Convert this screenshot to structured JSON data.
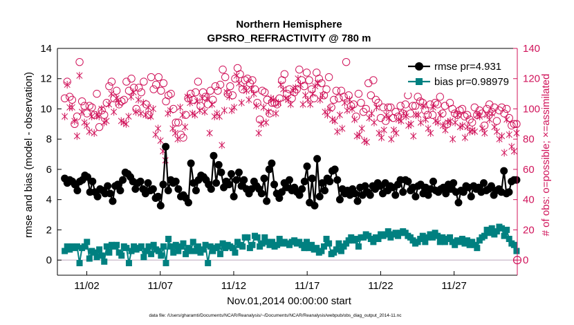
{
  "chart_data": {
    "type": "line",
    "title_line1": "Northern Hemisphere",
    "title_line2": "GPSRO_REFRACTIVITY @ 780 m",
    "ylabel_left": "rmse and bias (model - observation)",
    "ylabel_right": "# of obs: o=possible; ×=assimilated",
    "xlabel": "Nov.01,2014 00:00:00 start",
    "footnote": "data file: /Users/gharamti/Documents/NCAR/Reanalysis/~/Documents/NCAR/Reanalysis/webpub/obs_diag_output_2014-11.nc",
    "xlim": [
      0.0,
      31.3
    ],
    "ylim_left": [
      -1,
      14
    ],
    "ylim_right": [
      -10,
      140
    ],
    "x_ticks": [
      {
        "value": 2,
        "label": "11/02"
      },
      {
        "value": 7,
        "label": "11/07"
      },
      {
        "value": 12,
        "label": "11/12"
      },
      {
        "value": 17,
        "label": "11/17"
      },
      {
        "value": 22,
        "label": "11/22"
      },
      {
        "value": 27,
        "label": "11/27"
      }
    ],
    "y_ticks_left": [
      "0",
      "2",
      "4",
      "6",
      "8",
      "10",
      "12",
      "14"
    ],
    "y_ticks_right": [
      "0",
      "20",
      "40",
      "60",
      "80",
      "100",
      "120",
      "140"
    ],
    "legend": [
      {
        "label": "rmse pr=4.931",
        "color": "#000000"
      },
      {
        "label": "bias pr=0.98979",
        "color": "#008080"
      }
    ],
    "series": [
      {
        "name": "rmse",
        "axis": "left",
        "color": "#000000",
        "values": [
          5.4,
          5.1,
          5.3,
          5.2,
          5.0,
          4.6,
          5.2,
          5.3,
          5.6,
          5.5,
          4.5,
          5.2,
          4.5,
          4.2,
          4.7,
          4.6,
          4.4,
          4.9,
          4.4,
          3.9,
          4.9,
          5.0,
          4.6,
          5.3,
          5.8,
          5.7,
          5.5,
          5.2,
          4.7,
          5.1,
          5.2,
          4.7,
          4.4,
          5.1,
          4.6,
          4.7,
          4.1,
          4.2,
          3.6,
          5.0,
          7.5,
          4.6,
          5.3,
          5.1,
          5.2,
          4.7,
          4.2,
          4.3,
          4.1,
          3.8,
          6.4,
          5.1,
          4.6,
          5.3,
          5.6,
          5.5,
          5.3,
          5.0,
          4.7,
          6.9,
          5.1,
          6.3,
          5.8,
          4.8,
          5.2,
          5.0,
          5.7,
          4.2,
          5.3,
          5.8,
          4.9,
          5.3,
          4.7,
          4.4,
          4.7,
          5.2,
          4.9,
          4.7,
          4.4,
          5.4,
          3.9,
          6.0,
          6.4,
          5.0,
          4.4,
          4.1,
          4.5,
          5.1,
          4.8,
          5.3,
          4.6,
          4.8,
          4.5,
          4.3,
          4.7,
          5.2,
          6.2,
          3.8,
          5.4,
          3.6,
          6.7,
          4.2,
          5.1,
          4.6,
          5.4,
          5.2,
          5.9,
          6.0,
          5.3,
          4.0,
          4.7,
          4.4,
          4.6,
          4.3,
          4.7,
          4.4,
          3.9,
          4.8,
          4.3,
          4.9,
          4.5,
          4.3,
          4.9,
          4.7,
          5.1,
          4.9,
          4.4,
          5.1,
          4.6,
          4.9,
          4.8,
          4.3,
          5.0,
          5.3,
          4.5,
          5.3,
          5.2,
          4.6,
          4.8,
          4.2,
          4.9,
          5.0,
          4.4,
          4.8,
          4.3,
          4.7,
          5.2,
          4.6,
          4.5,
          4.7,
          4.8,
          4.4,
          5.0,
          4.7,
          5.1,
          4.5,
          3.8,
          4.6,
          4.5,
          4.9,
          4.8,
          4.2,
          4.9,
          4.7,
          4.8,
          4.5,
          5.1,
          4.6,
          4.7,
          4.9,
          4.3,
          4.6,
          4.7,
          4.5,
          5.9,
          4.4,
          4.5,
          5.2,
          5.3,
          5.3
        ]
      },
      {
        "name": "bias",
        "axis": "left",
        "color": "#008080",
        "values": [
          0.6,
          0.9,
          0.7,
          0.9,
          0.8,
          0.9,
          -0.2,
          0.8,
          0.9,
          1.2,
          0.1,
          0.6,
          0.5,
          0.2,
          0.7,
          0.3,
          -0.1,
          0.9,
          0.5,
          1.0,
          0.9,
          1.0,
          0.5,
          0.3,
          0.9,
          0.8,
          -0.2,
          0.6,
          0.9,
          0.7,
          0.8,
          0.9,
          0.2,
          0.6,
          0.9,
          0.4,
          1.0,
          0.7,
          0.6,
          0.3,
          0.9,
          -0.2,
          1.4,
          0.9,
          0.5,
          1.0,
          0.6,
          0.9,
          1.1,
          0.4,
          0.8,
          0.6,
          1.2,
          0.6,
          0.9,
          0.5,
          0.7,
          1.0,
          -0.2,
          0.9,
          0.6,
          0.8,
          0.9,
          0.4,
          1.1,
          0.8,
          1.0,
          0.9,
          0.8,
          0.5,
          1.2,
          1.0,
          0.9,
          1.5,
          1.5,
          0.8,
          1.0,
          1.6,
          1.5,
          0.9,
          1.1,
          1.5,
          1.2,
          1.0,
          1.2,
          0.9,
          1.0,
          1.4,
          1.1,
          1.2,
          1.1,
          1.0,
          1.2,
          1.3,
          1.1,
          1.2,
          1.0,
          0.8,
          1.2,
          0.8,
          1.0,
          0.7,
          0.8,
          0.5,
          0.6,
          0.9,
          1.4,
          1.1,
          0.4,
          0.5,
          0.7,
          1.1,
          0.6,
          0.9,
          1.1,
          1.3,
          1.5,
          1.3,
          1.4,
          0.9,
          1.5,
          1.5,
          1.7,
          1.6,
          1.4,
          1.2,
          1.5,
          1.4,
          1.7,
          1.6,
          1.7,
          1.9,
          1.5,
          1.7,
          1.8,
          1.6,
          1.8,
          1.9,
          1.8,
          1.6,
          1.5,
          1.3,
          1.1,
          1.2,
          1.4,
          1.6,
          1.2,
          1.5,
          1.7,
          1.5,
          1.8,
          1.6,
          1.2,
          1.5,
          1.2,
          1.4,
          1.5,
          1.2,
          1.0,
          1.3,
          1.2,
          1.4,
          1.1,
          1.3,
          1.0,
          1.2,
          1.0,
          0.8,
          1.3,
          1.5,
          1.6,
          2.0,
          1.8,
          2.1,
          1.7,
          1.9,
          2.2,
          2.1,
          1.6,
          2.0,
          1.4,
          1.1,
          1.0,
          0.6
        ]
      },
      {
        "name": "# of obs possible",
        "axis": "right",
        "marker": "circle",
        "color": "#d0135a",
        "values": [
          107,
          118,
          108,
          106,
          90,
          95,
          131,
          105,
          102,
          97,
          102,
          101,
          96,
          110,
          88,
          99,
          96,
          104,
          115,
          118,
          107,
          112,
          103,
          105,
          106,
          118,
          112,
          120,
          114,
          100,
          114,
          111,
          118,
          103,
          96,
          121,
          113,
          116,
          121,
          112,
          117,
          105,
          109,
          110,
          100,
          91,
          91,
          83,
          81,
          96,
          107,
          110,
          106,
          111,
          118,
          102,
          111,
          108,
          103,
          112,
          106,
          115,
          112,
          116,
          126,
          121,
          110,
          115,
          109,
          120,
          127,
          123,
          113,
          119,
          120,
          117,
          119,
          113,
          104,
          93,
          112,
          111,
          106,
          97,
          104,
          104,
          103,
          107,
          119,
          123,
          110,
          113,
          107,
          111,
          113,
          126,
          119,
          115,
          124,
          119,
          113,
          107,
          124,
          120,
          117,
          109,
          113,
          121,
          101,
          106,
          112,
          107,
          112,
          108,
          131,
          109,
          102,
          103,
          95,
          110,
          104,
          98,
          100,
          117,
          109,
          119,
          106,
          104,
          94,
          101,
          92,
          101,
          101,
          94,
          98,
          95,
          102,
          97,
          103,
          109,
          97,
          102,
          102,
          108,
          105,
          104,
          99,
          96,
          103,
          96,
          104,
          103,
          108,
          97,
          102,
          90,
          104,
          100,
          97,
          96,
          99,
          100,
          95,
          96,
          93,
          91,
          101,
          96,
          99,
          97,
          89,
          100,
          103,
          98,
          101,
          92,
          99,
          101,
          97,
          100,
          94,
          89,
          90,
          90
        ]
      },
      {
        "name": "# of obs assimilated",
        "axis": "right",
        "marker": "x",
        "color": "#d0135a",
        "values": [
          95,
          116,
          101,
          101,
          92,
          82,
          122,
          98,
          91,
          89,
          85,
          95,
          84,
          96,
          95,
          100,
          91,
          92,
          103,
          110,
          98,
          107,
          104,
          92,
          91,
          90,
          95,
          108,
          111,
          98,
          106,
          97,
          104,
          96,
          101,
          95,
          100,
          83,
          87,
          79,
          72,
          66,
          97,
          99,
          87,
          84,
          80,
          101,
          96,
          88,
          108,
          104,
          97,
          96,
          105,
          99,
          107,
          98,
          107,
          84,
          103,
          95,
          97,
          95,
          76,
          99,
          111,
          108,
          99,
          101,
          122,
          117,
          104,
          114,
          112,
          106,
          113,
          110,
          102,
          84,
          90,
          101,
          91,
          98,
          107,
          106,
          97,
          104,
          116,
          113,
          107,
          106,
          103,
          112,
          114,
          120,
          116,
          103,
          109,
          106,
          103,
          110,
          115,
          117,
          106,
          109,
          98,
          96,
          100,
          93,
          92,
          85,
          96,
          87,
          104,
          99,
          106,
          100,
          93,
          82,
          83,
          87,
          79,
          78,
          94,
          97,
          91,
          101,
          84,
          81,
          86,
          96,
          94,
          80,
          86,
          84,
          93,
          92,
          97,
          95,
          89,
          90,
          82,
          96,
          96,
          91,
          102,
          93,
          87,
          84,
          101,
          92,
          91,
          96,
          89,
          86,
          91,
          92,
          80,
          91,
          96,
          88,
          89,
          81,
          88,
          85,
          86,
          85,
          96,
          95,
          87,
          84,
          96,
          93,
          97,
          88,
          85,
          80,
          82,
          71,
          93,
          83,
          75,
          72,
          84
        ]
      }
    ]
  }
}
